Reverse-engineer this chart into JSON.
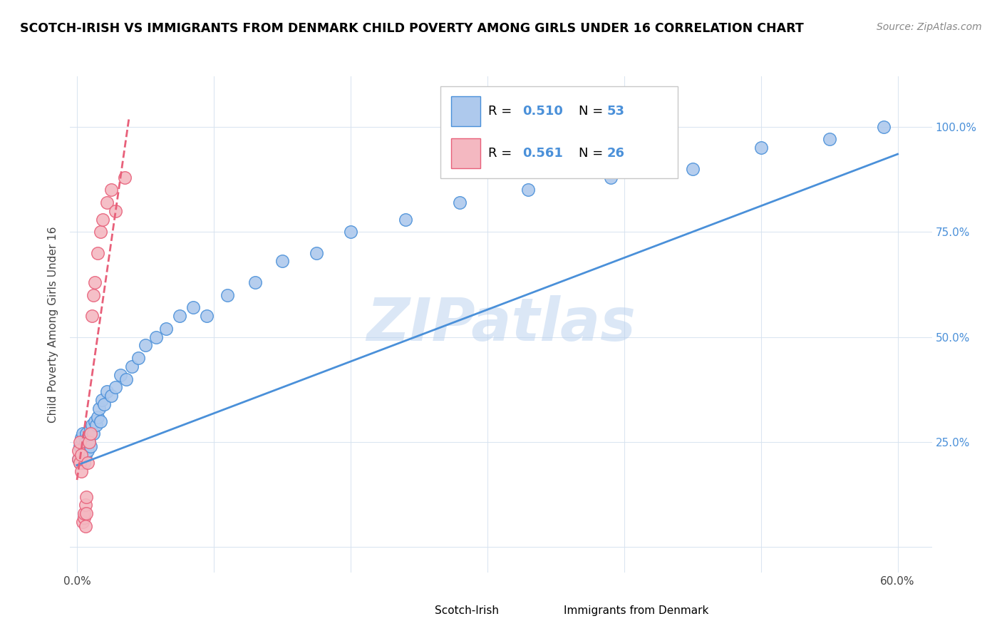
{
  "title": "SCOTCH-IRISH VS IMMIGRANTS FROM DENMARK CHILD POVERTY AMONG GIRLS UNDER 16 CORRELATION CHART",
  "source": "Source: ZipAtlas.com",
  "ylabel": "Child Poverty Among Girls Under 16",
  "legend_label1": "Scotch-Irish",
  "legend_label2": "Immigrants from Denmark",
  "R1": 0.51,
  "N1": 53,
  "R2": 0.561,
  "N2": 26,
  "color_blue": "#aec9ed",
  "color_pink": "#f4b8c1",
  "line_blue": "#4a90d9",
  "line_pink": "#e8607a",
  "watermark_text": "ZIPatlas",
  "blue_x": [
    0.001,
    0.002,
    0.002,
    0.003,
    0.003,
    0.004,
    0.004,
    0.005,
    0.005,
    0.006,
    0.006,
    0.007,
    0.007,
    0.008,
    0.008,
    0.009,
    0.01,
    0.01,
    0.011,
    0.012,
    0.013,
    0.014,
    0.015,
    0.016,
    0.017,
    0.018,
    0.02,
    0.022,
    0.025,
    0.028,
    0.032,
    0.036,
    0.04,
    0.045,
    0.05,
    0.058,
    0.065,
    0.075,
    0.085,
    0.095,
    0.11,
    0.13,
    0.15,
    0.175,
    0.2,
    0.24,
    0.28,
    0.33,
    0.39,
    0.45,
    0.5,
    0.55,
    0.59
  ],
  "blue_y": [
    0.21,
    0.2,
    0.24,
    0.22,
    0.26,
    0.21,
    0.27,
    0.2,
    0.23,
    0.22,
    0.25,
    0.24,
    0.27,
    0.23,
    0.26,
    0.25,
    0.28,
    0.24,
    0.29,
    0.27,
    0.3,
    0.29,
    0.31,
    0.33,
    0.3,
    0.35,
    0.34,
    0.37,
    0.36,
    0.38,
    0.41,
    0.4,
    0.43,
    0.45,
    0.48,
    0.5,
    0.52,
    0.55,
    0.57,
    0.55,
    0.6,
    0.63,
    0.68,
    0.7,
    0.75,
    0.78,
    0.82,
    0.85,
    0.88,
    0.9,
    0.95,
    0.97,
    1.0
  ],
  "pink_x": [
    0.001,
    0.001,
    0.002,
    0.002,
    0.003,
    0.003,
    0.004,
    0.005,
    0.005,
    0.006,
    0.006,
    0.007,
    0.007,
    0.008,
    0.009,
    0.01,
    0.011,
    0.012,
    0.013,
    0.015,
    0.017,
    0.019,
    0.022,
    0.025,
    0.028,
    0.035
  ],
  "pink_y": [
    0.21,
    0.23,
    0.2,
    0.25,
    0.18,
    0.22,
    0.06,
    0.07,
    0.08,
    0.05,
    0.1,
    0.12,
    0.08,
    0.2,
    0.25,
    0.27,
    0.55,
    0.6,
    0.63,
    0.7,
    0.75,
    0.78,
    0.82,
    0.85,
    0.8,
    0.88
  ],
  "blue_line_x0": 0.0,
  "blue_line_x1": 0.6,
  "blue_line_y0": 0.195,
  "blue_line_y1": 0.935,
  "pink_line_x0": 0.0,
  "pink_line_x1": 0.038,
  "pink_line_y0": 0.16,
  "pink_line_y1": 1.02,
  "xmin": -0.005,
  "xmax": 0.625,
  "ymin": -0.06,
  "ymax": 1.12,
  "xtick_pos": [
    0.0,
    0.1,
    0.2,
    0.3,
    0.4,
    0.5,
    0.6
  ],
  "xtick_labels": [
    "0.0%",
    "",
    "",
    "",
    "",
    "",
    "60.0%"
  ],
  "ytick_pos": [
    0.0,
    0.25,
    0.5,
    0.75,
    1.0
  ],
  "ytick_labels_right": [
    "",
    "25.0%",
    "50.0%",
    "75.0%",
    "100.0%"
  ]
}
